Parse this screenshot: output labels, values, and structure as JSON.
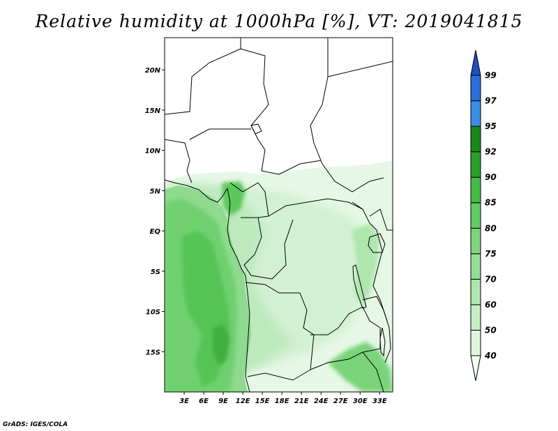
{
  "title": "Relative humidity at 1000hPa [%], VT: 2019041815",
  "credit": "GrADS: IGES/COLA",
  "map": {
    "region": "Central Africa",
    "lon_range": [
      0,
      35
    ],
    "lat_range": [
      -20,
      24
    ],
    "lon_ticks": [
      "3E",
      "6E",
      "9E",
      "12E",
      "15E",
      "18E",
      "21E",
      "24E",
      "27E",
      "30E",
      "33E"
    ],
    "lat_ticks": [
      "20N",
      "15N",
      "10N",
      "5N",
      "EQ",
      "5S",
      "10S",
      "15S"
    ]
  },
  "colorbar": {
    "levels": [
      "40",
      "50",
      "60",
      "70",
      "75",
      "80",
      "85",
      "90",
      "92",
      "95",
      "97",
      "99"
    ],
    "colors": [
      "#f0fff0",
      "#ddf7dd",
      "#c6efc6",
      "#aee6ae",
      "#94de94",
      "#7dd67d",
      "#63cc63",
      "#44bb44",
      "#2aa02a",
      "#188a18",
      "#3a8ee6",
      "#2a6fd6",
      "#1a50c0"
    ]
  }
}
